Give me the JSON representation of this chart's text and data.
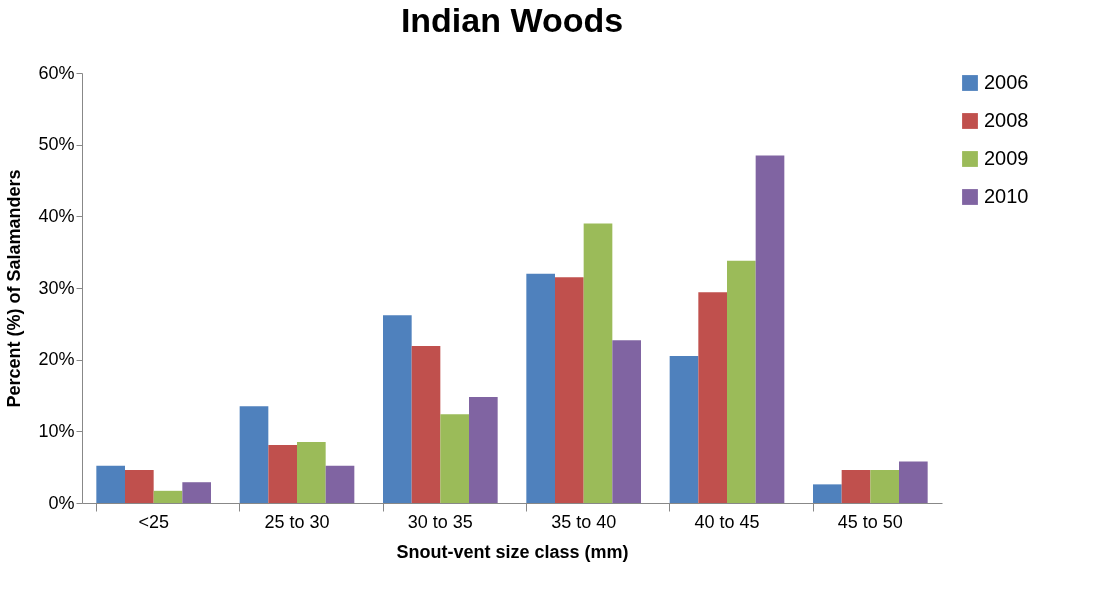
{
  "chart_data": {
    "type": "bar",
    "title": "Indian Woods",
    "xlabel": "Snout-vent size class (mm)",
    "ylabel": "Percent (%) of Salamanders",
    "categories": [
      "<25",
      "25 to 30",
      "30 to 35",
      "35 to 40",
      "40 to 45",
      "45 to 50"
    ],
    "series": [
      {
        "name": "2006",
        "color": "#4f81bd",
        "values": [
          5.2,
          13.5,
          26.2,
          32.0,
          20.5,
          2.6
        ]
      },
      {
        "name": "2008",
        "color": "#c0504d",
        "values": [
          4.6,
          8.1,
          21.9,
          31.5,
          29.4,
          4.6
        ]
      },
      {
        "name": "2009",
        "color": "#9bbb59",
        "values": [
          1.7,
          8.5,
          12.4,
          39.0,
          33.8,
          4.6
        ]
      },
      {
        "name": "2010",
        "color": "#8064a2",
        "values": [
          2.9,
          5.2,
          14.8,
          22.7,
          48.5,
          5.8
        ]
      }
    ],
    "ylim": [
      0,
      60
    ],
    "yticks": [
      {
        "value": 0,
        "label": "0%"
      },
      {
        "value": 10,
        "label": "10%"
      },
      {
        "value": 20,
        "label": "20%"
      },
      {
        "value": 30,
        "label": "30%"
      },
      {
        "value": 40,
        "label": "40%"
      },
      {
        "value": 50,
        "label": "50%"
      },
      {
        "value": 60,
        "label": "60%"
      }
    ],
    "grid": false,
    "legend": "right"
  }
}
